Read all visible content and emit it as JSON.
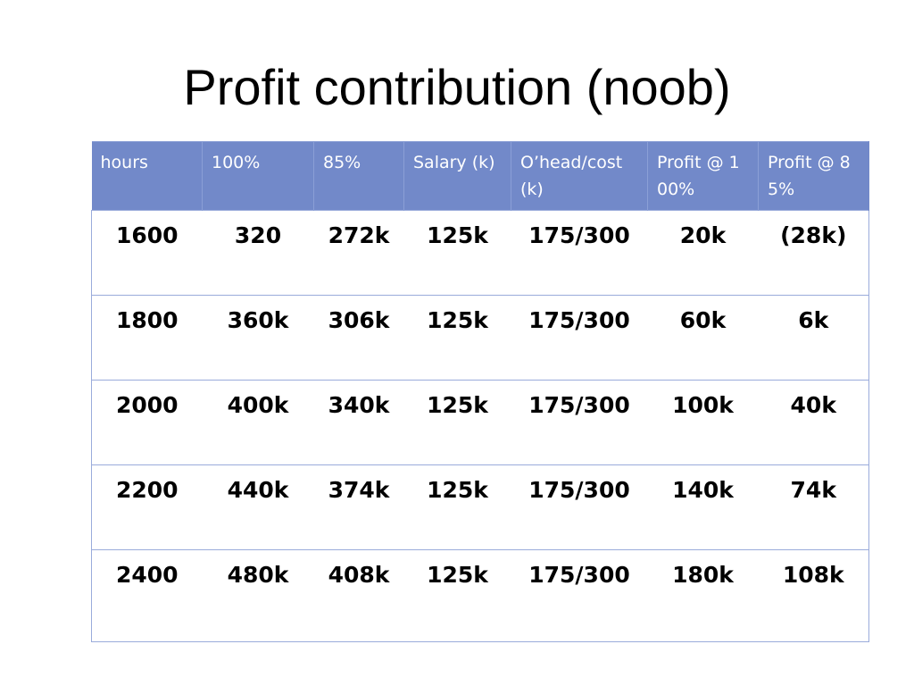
{
  "title": "Profit contribution (noob)",
  "table": {
    "headers": [
      "hours",
      "100%",
      "85%",
      "Salary (k)",
      "O’head/cost (k)",
      "Profit @ 100%",
      "Profit @ 85%"
    ],
    "rows": [
      [
        "1600",
        "320",
        "272k",
        "125k",
        "175/300",
        "20k",
        "(28k)"
      ],
      [
        "1800",
        "360k",
        "306k",
        "125k",
        "175/300",
        "60k",
        "6k"
      ],
      [
        "2000",
        "400k",
        "340k",
        "125k",
        "175/300",
        "100k",
        "40k"
      ],
      [
        "2200",
        "440k",
        "374k",
        "125k",
        "175/300",
        "140k",
        "74k"
      ],
      [
        "2400",
        "480k",
        "408k",
        "125k",
        "175/300",
        "180k",
        "108k"
      ]
    ]
  },
  "colors": {
    "header_background": "#7289c9",
    "header_text": "#ffffff",
    "grid_line": "#9aabdb"
  }
}
